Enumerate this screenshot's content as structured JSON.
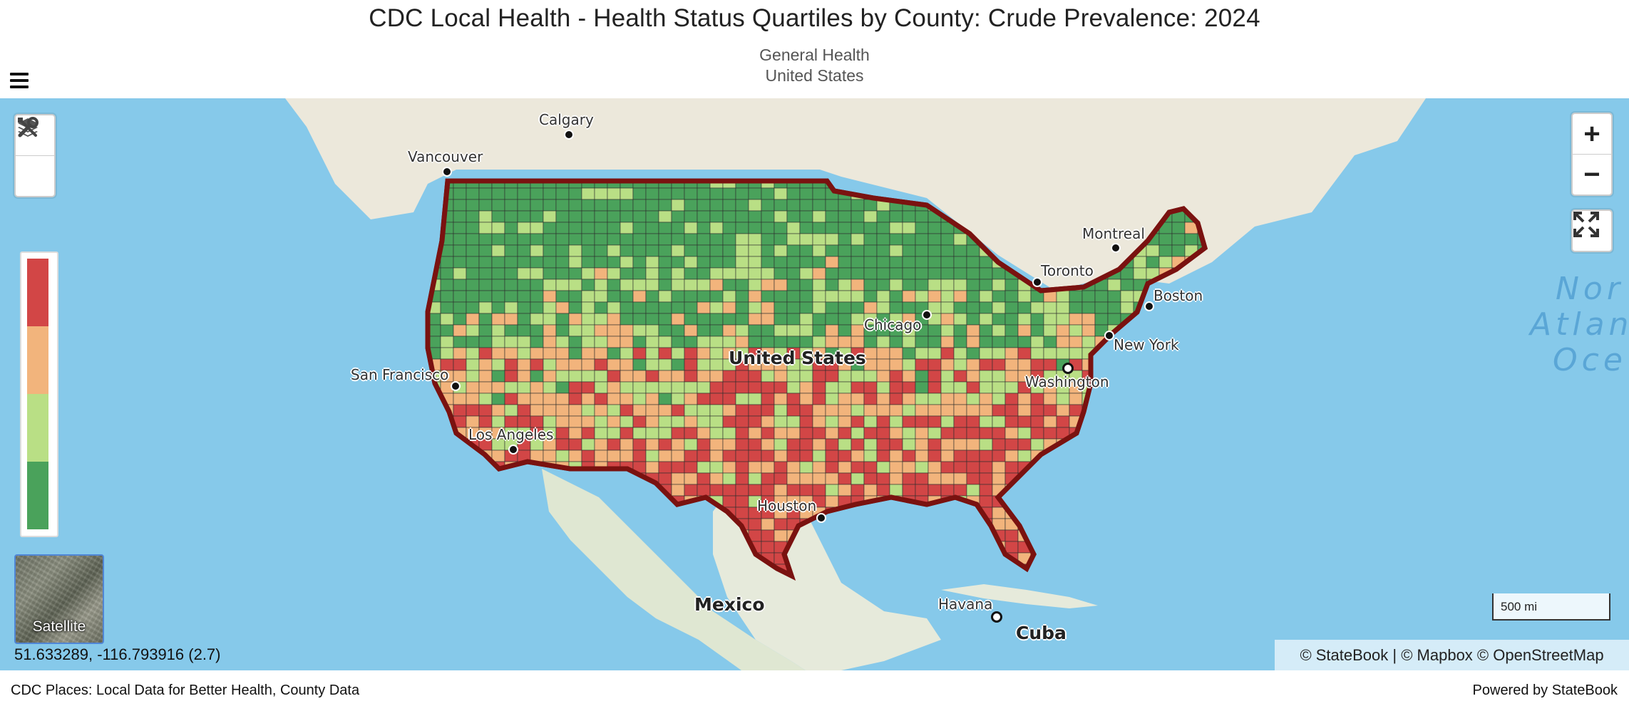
{
  "header": {
    "title": "CDC Local Health - Health Status Quartiles by County: Crude Prevalence: 2024",
    "subtitle_line1": "General Health",
    "subtitle_line2": "United States"
  },
  "controls": {
    "menu_icon": "hamburger-icon",
    "layers_icon": "layers-icon",
    "tools_icon": "tools-icon",
    "zoom_in_label": "+",
    "zoom_out_label": "−",
    "fullscreen_icon": "fullscreen-icon"
  },
  "legend": {
    "colors": [
      "#d24646",
      "#f2b47c",
      "#b9df85",
      "#4aa25b"
    ]
  },
  "basemap_toggle": {
    "label": "Satellite"
  },
  "coordinates": "51.633289, -116.793916  (2.7)",
  "scale_bar": "500 mi",
  "attribution": "© StateBook | © Mapbox © OpenStreetMap",
  "map_labels": {
    "cities": [
      {
        "name": "Calgary"
      },
      {
        "name": "Vancouver"
      },
      {
        "name": "Montreal"
      },
      {
        "name": "Toronto"
      },
      {
        "name": "Boston"
      },
      {
        "name": "Chicago"
      },
      {
        "name": "New York"
      },
      {
        "name": "Washington"
      },
      {
        "name": "San Francisco"
      },
      {
        "name": "Los Angeles"
      },
      {
        "name": "Houston"
      },
      {
        "name": "Havana"
      }
    ],
    "countries": [
      "United States",
      "Mexico",
      "Cuba"
    ],
    "ocean": [
      "Nor",
      "Atlan",
      "Oce"
    ]
  },
  "footer": {
    "left": "CDC Places: Local Data for Better Health, County Data",
    "right": "Powered by StateBook"
  }
}
